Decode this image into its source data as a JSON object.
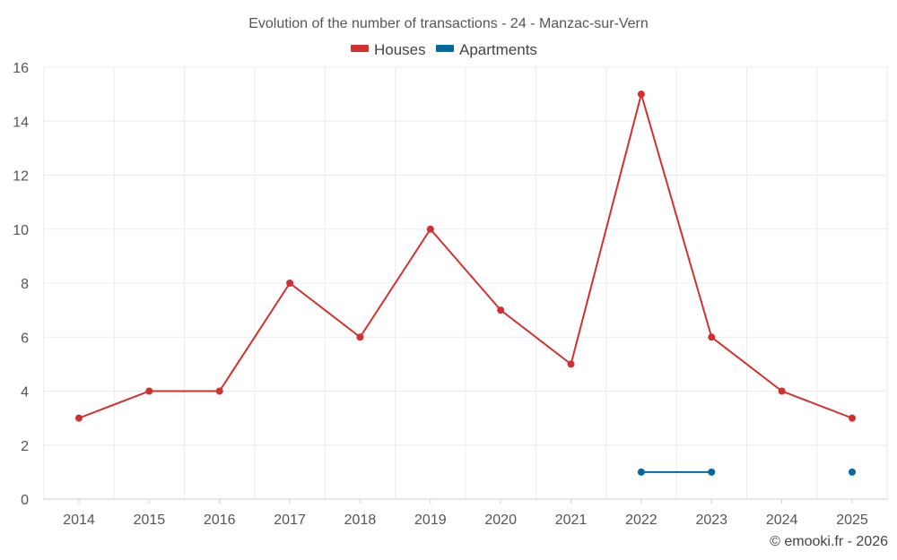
{
  "chart_data": {
    "type": "line",
    "title": "Evolution of the number of transactions - 24 - Manzac-sur-Vern",
    "x": [
      "2014",
      "2015",
      "2016",
      "2017",
      "2018",
      "2019",
      "2020",
      "2021",
      "2022",
      "2023",
      "2024",
      "2025"
    ],
    "ylim": [
      0,
      16
    ],
    "yticks": [
      "0",
      "2",
      "4",
      "6",
      "8",
      "10",
      "12",
      "14",
      "16"
    ],
    "grid": true,
    "legend_position": "top-center",
    "series": [
      {
        "name": "Houses",
        "color": "#d32f2f",
        "values": [
          3,
          4,
          4,
          8,
          6,
          10,
          7,
          5,
          15,
          6,
          4,
          3
        ]
      },
      {
        "name": "Apartments",
        "color": "#006a9f",
        "values": [
          null,
          null,
          null,
          null,
          null,
          null,
          null,
          null,
          1,
          1,
          null,
          1
        ]
      }
    ],
    "credit": "© emooki.fr - 2026"
  }
}
